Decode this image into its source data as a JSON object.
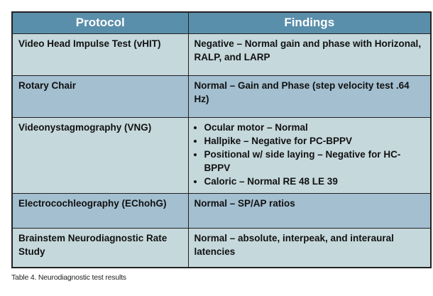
{
  "table": {
    "headers": [
      "Protocol",
      "Findings"
    ],
    "rows": [
      {
        "protocol": "Video Head Impulse Test (vHIT)",
        "findings": "Negative – Normal gain and phase with Horizonal, RALP, and LARP"
      },
      {
        "protocol": "Rotary Chair",
        "findings": "Normal – Gain and Phase (step velocity test .64 Hz)"
      },
      {
        "protocol": "Videonystagmography (VNG)",
        "findings_list": [
          "Ocular motor – Normal",
          "Hallpike – Negative for PC-BPPV",
          "Positional w/ side laying – Negative for HC-BPPV",
          "Caloric – Normal RE 48 LE 39"
        ]
      },
      {
        "protocol": "Electrocochleography (EChohG)",
        "findings": "Normal – SP/AP ratios"
      },
      {
        "protocol": "Brainstem Neurodiagnostic Rate Study",
        "findings": "Normal – absolute, interpeak, and interaural latencies"
      }
    ]
  },
  "caption": "Table 4. Neurodiagnostic test results",
  "colors": {
    "header": "#5a8fab",
    "row_light": "#c5d8dc",
    "row_dark": "#a3bfd0"
  }
}
